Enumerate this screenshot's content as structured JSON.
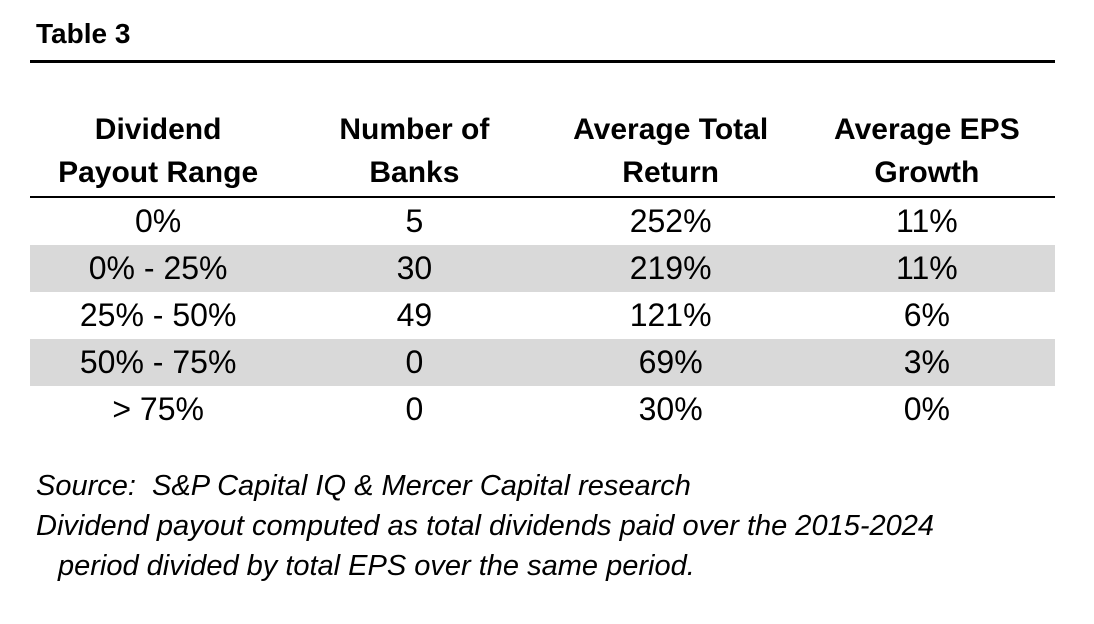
{
  "page": {
    "title": "Table 3"
  },
  "table": {
    "columns": [
      {
        "line1": "Dividend",
        "line2": "Payout Range"
      },
      {
        "line1": "Number of",
        "line2": "Banks"
      },
      {
        "line1": "Average Total",
        "line2": "Return"
      },
      {
        "line1": "Average EPS",
        "line2": "Growth"
      }
    ],
    "rows": [
      {
        "cells": [
          "0%",
          "5",
          "252%",
          "11%"
        ]
      },
      {
        "cells": [
          "0% - 25%",
          "30",
          "219%",
          "11%"
        ]
      },
      {
        "cells": [
          "25% - 50%",
          "49",
          "121%",
          "6%"
        ]
      },
      {
        "cells": [
          "50% - 75%",
          "0",
          "69%",
          "3%"
        ]
      },
      {
        "cells": [
          "> 75%",
          "0",
          "30%",
          "0%"
        ]
      }
    ]
  },
  "notes": {
    "source": "Source:  S&P Capital IQ & Mercer Capital research",
    "line2": "Dividend payout computed as total dividends paid over the 2015-2024",
    "line3": "period divided by total EPS over the same period."
  },
  "colors": {
    "row_shade": "#d9d9d9",
    "rule": "#000000",
    "text": "#000000",
    "background": "#ffffff"
  }
}
